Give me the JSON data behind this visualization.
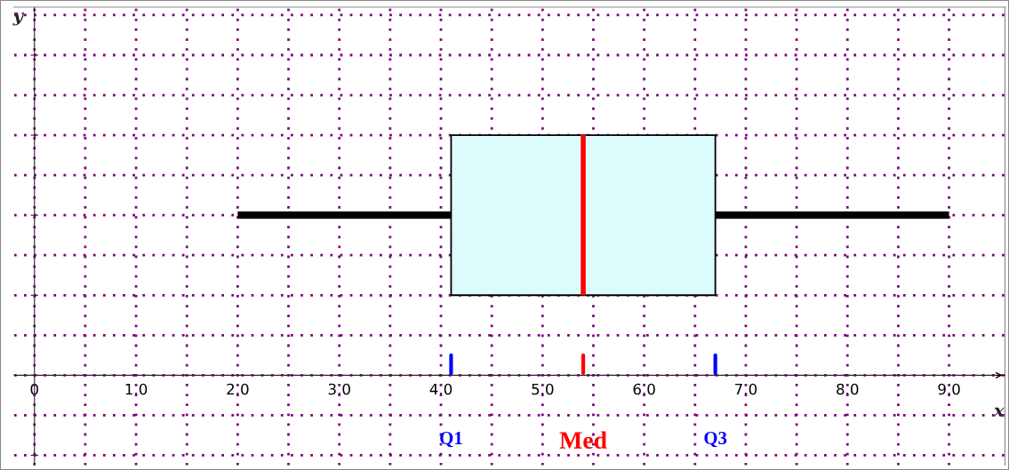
{
  "chart_data": {
    "type": "box",
    "orientation": "horizontal",
    "xlabel": "x",
    "ylabel": "y",
    "categories": [
      null
    ],
    "boxes": [
      {
        "low": 2.0,
        "q1": 4.1,
        "median": 5.4,
        "q3": 6.7,
        "high": 9.0
      }
    ],
    "xlim": [
      -0.2,
      9.55
    ],
    "xticks": [
      {
        "value": 0,
        "label": "0"
      },
      {
        "value": 0.5,
        "label": null
      },
      {
        "value": 1,
        "label": "1.0"
      },
      {
        "value": 1.5,
        "label": null
      },
      {
        "value": 2,
        "label": "2.0"
      },
      {
        "value": 2.5,
        "label": null
      },
      {
        "value": 3,
        "label": "3.0"
      },
      {
        "value": 3.5,
        "label": null
      },
      {
        "value": 4,
        "label": "4.0"
      },
      {
        "value": 4.5,
        "label": null
      },
      {
        "value": 5,
        "label": "5.0"
      },
      {
        "value": 5.5,
        "label": null
      },
      {
        "value": 6,
        "label": "6.0"
      },
      {
        "value": 6.5,
        "label": null
      },
      {
        "value": 7,
        "label": "7.0"
      },
      {
        "value": 7.5,
        "label": null
      },
      {
        "value": 8,
        "label": "8.0"
      },
      {
        "value": 8.5,
        "label": null
      },
      {
        "value": 9,
        "label": "9.0"
      }
    ],
    "annotations": [
      "Q1",
      "Med",
      "Q3"
    ],
    "grid": true,
    "tick_labels": "x"
  }
}
